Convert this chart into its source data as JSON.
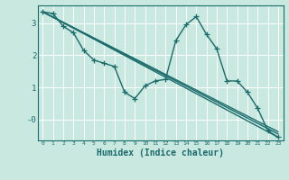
{
  "xlabel": "Humidex (Indice chaleur)",
  "ylabel": "",
  "bg_color": "#c8e8e0",
  "grid_color": "#ffffff",
  "line_color": "#1a6b6b",
  "marker_color": "#1a6b6b",
  "xlim": [
    -0.5,
    23.5
  ],
  "ylim": [
    -0.65,
    3.55
  ],
  "yticks": [
    3,
    2,
    1,
    0
  ],
  "ytick_labels": [
    "3",
    "2",
    "1",
    "-0"
  ],
  "xticks": [
    0,
    1,
    2,
    3,
    4,
    5,
    6,
    7,
    8,
    9,
    10,
    11,
    12,
    13,
    14,
    15,
    16,
    17,
    18,
    19,
    20,
    21,
    22,
    23
  ],
  "line1": [
    [
      0,
      3.35
    ],
    [
      1,
      3.3
    ],
    [
      2,
      2.9
    ],
    [
      3,
      2.7
    ],
    [
      4,
      2.15
    ],
    [
      5,
      1.85
    ],
    [
      6,
      1.75
    ],
    [
      7,
      1.65
    ],
    [
      8,
      0.85
    ],
    [
      9,
      0.65
    ],
    [
      10,
      1.05
    ],
    [
      11,
      1.2
    ],
    [
      12,
      1.25
    ],
    [
      13,
      2.45
    ],
    [
      14,
      2.95
    ],
    [
      15,
      3.2
    ],
    [
      16,
      2.65
    ],
    [
      17,
      2.2
    ],
    [
      18,
      1.2
    ],
    [
      19,
      1.2
    ],
    [
      20,
      0.85
    ],
    [
      21,
      0.35
    ],
    [
      22,
      -0.35
    ],
    [
      23,
      -0.55
    ]
  ],
  "line2": [
    [
      0,
      3.35
    ],
    [
      23,
      -0.55
    ]
  ],
  "line3": [
    [
      0,
      3.35
    ],
    [
      23,
      -0.45
    ]
  ],
  "line4": [
    [
      0,
      3.35
    ],
    [
      23,
      -0.38
    ]
  ]
}
